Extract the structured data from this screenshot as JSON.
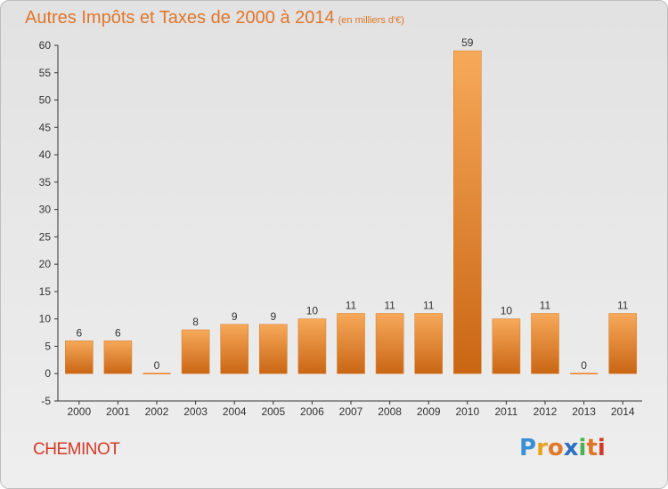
{
  "title": "Autres Impôts et Taxes de 2000 à 2014",
  "unit": "(en milliers d'€)",
  "commune": "CHEMINOT",
  "logo": {
    "letters": [
      "P",
      "r",
      "o",
      "x",
      "i",
      "t",
      "i"
    ],
    "colors": [
      "#3b8fd4",
      "#e8a21c",
      "#e07a2a",
      "#2c6fc0",
      "#4caf50",
      "#e0752a",
      "#d33a28"
    ]
  },
  "colors": {
    "bar": "#e87c22",
    "bar_light": "#f7a95a",
    "bar_dark": "#c96614",
    "title": "#e0752a",
    "commune": "#d33a28",
    "axis": "#333333"
  },
  "chart_data": {
    "type": "bar",
    "title": "Autres Impôts et Taxes de 2000 à 2014",
    "subtitle": "(en milliers d'€)",
    "xlabel": "",
    "ylabel": "",
    "categories": [
      "2000",
      "2001",
      "2002",
      "2003",
      "2004",
      "2005",
      "2006",
      "2007",
      "2008",
      "2009",
      "2010",
      "2011",
      "2012",
      "2013",
      "2014"
    ],
    "values": [
      6,
      6,
      0,
      8,
      9,
      9,
      10,
      11,
      11,
      11,
      59,
      10,
      11,
      0,
      11
    ],
    "ylim": [
      -5,
      60
    ],
    "yticks": [
      -5,
      0,
      5,
      10,
      15,
      20,
      25,
      30,
      35,
      40,
      45,
      50,
      55,
      60
    ],
    "grid": false
  }
}
